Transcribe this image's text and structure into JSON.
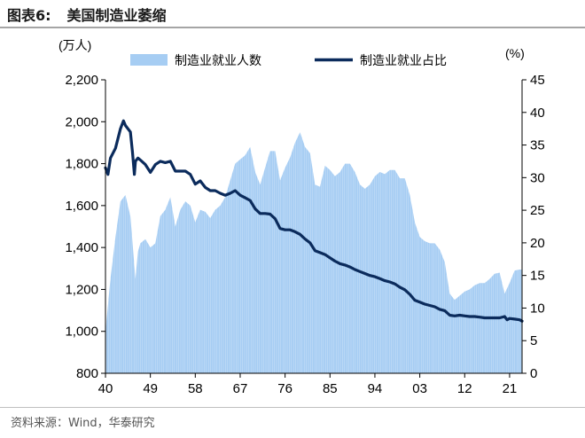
{
  "header": {
    "figure_no": "图表6:",
    "title": "美国制造业萎缩"
  },
  "source": "资料来源：Wind，华泰研究",
  "colors": {
    "bar": "#a6cdf3",
    "line": "#0b2b5c",
    "axis": "#000000"
  },
  "chart_data": {
    "type": "bar+line",
    "left_unit": "(万人)",
    "right_unit": "(%)",
    "x_ticks": [
      "40",
      "49",
      "58",
      "67",
      "76",
      "85",
      "94",
      "03",
      "12",
      "21"
    ],
    "x_range": [
      1940,
      2023.5
    ],
    "left_ylim": [
      800,
      2200
    ],
    "left_ticks": [
      "800",
      "1,000",
      "1,200",
      "1,400",
      "1,600",
      "1,800",
      "2,000",
      "2,200"
    ],
    "right_ylim": [
      0,
      45
    ],
    "right_ticks": [
      "0",
      "5",
      "10",
      "15",
      "20",
      "25",
      "30",
      "35",
      "40",
      "45"
    ],
    "series": [
      {
        "name": "制造业就业人数",
        "type": "area",
        "axis": "left",
        "points": [
          [
            1940,
            1000
          ],
          [
            1941,
            1250
          ],
          [
            1942,
            1450
          ],
          [
            1943,
            1620
          ],
          [
            1944,
            1650
          ],
          [
            1945,
            1550
          ],
          [
            1946,
            1250
          ],
          [
            1946.5,
            1380
          ],
          [
            1947,
            1420
          ],
          [
            1948,
            1440
          ],
          [
            1949,
            1400
          ],
          [
            1950,
            1420
          ],
          [
            1951,
            1550
          ],
          [
            1952,
            1580
          ],
          [
            1953,
            1640
          ],
          [
            1954,
            1500
          ],
          [
            1955,
            1580
          ],
          [
            1956,
            1620
          ],
          [
            1957,
            1600
          ],
          [
            1958,
            1520
          ],
          [
            1959,
            1580
          ],
          [
            1960,
            1570
          ],
          [
            1961,
            1540
          ],
          [
            1962,
            1580
          ],
          [
            1963,
            1600
          ],
          [
            1964,
            1640
          ],
          [
            1965,
            1720
          ],
          [
            1966,
            1800
          ],
          [
            1967,
            1820
          ],
          [
            1968,
            1840
          ],
          [
            1969,
            1880
          ],
          [
            1970,
            1760
          ],
          [
            1971,
            1700
          ],
          [
            1972,
            1780
          ],
          [
            1973,
            1860
          ],
          [
            1974,
            1860
          ],
          [
            1975,
            1720
          ],
          [
            1976,
            1780
          ],
          [
            1977,
            1830
          ],
          [
            1978,
            1900
          ],
          [
            1979,
            1950
          ],
          [
            1980,
            1880
          ],
          [
            1981,
            1850
          ],
          [
            1982,
            1700
          ],
          [
            1983,
            1690
          ],
          [
            1984,
            1790
          ],
          [
            1985,
            1770
          ],
          [
            1986,
            1740
          ],
          [
            1987,
            1760
          ],
          [
            1988,
            1800
          ],
          [
            1989,
            1800
          ],
          [
            1990,
            1760
          ],
          [
            1991,
            1700
          ],
          [
            1992,
            1680
          ],
          [
            1993,
            1700
          ],
          [
            1994,
            1740
          ],
          [
            1995,
            1760
          ],
          [
            1996,
            1750
          ],
          [
            1997,
            1770
          ],
          [
            1998,
            1770
          ],
          [
            1999,
            1730
          ],
          [
            2000,
            1730
          ],
          [
            2001,
            1650
          ],
          [
            2002,
            1520
          ],
          [
            2003,
            1450
          ],
          [
            2004,
            1430
          ],
          [
            2005,
            1420
          ],
          [
            2006,
            1420
          ],
          [
            2007,
            1390
          ],
          [
            2008,
            1330
          ],
          [
            2009,
            1180
          ],
          [
            2010,
            1150
          ],
          [
            2011,
            1170
          ],
          [
            2012,
            1190
          ],
          [
            2013,
            1200
          ],
          [
            2014,
            1220
          ],
          [
            2015,
            1230
          ],
          [
            2016,
            1230
          ],
          [
            2017,
            1250
          ],
          [
            2018,
            1275
          ],
          [
            2019,
            1280
          ],
          [
            2020,
            1180
          ],
          [
            2021,
            1230
          ],
          [
            2022,
            1290
          ],
          [
            2023,
            1295
          ],
          [
            2023.5,
            1295
          ]
        ]
      },
      {
        "name": "制造业就业占比",
        "type": "line",
        "axis": "right",
        "points": [
          [
            1940,
            31.5
          ],
          [
            1940.5,
            30.5
          ],
          [
            1941,
            33
          ],
          [
            1942,
            34.5
          ],
          [
            1943,
            37.5
          ],
          [
            1943.6,
            38.7
          ],
          [
            1944,
            38
          ],
          [
            1945,
            37
          ],
          [
            1945.4,
            34
          ],
          [
            1945.8,
            30.5
          ],
          [
            1946,
            32.5
          ],
          [
            1946.5,
            33
          ],
          [
            1947,
            32.7
          ],
          [
            1948,
            32
          ],
          [
            1949,
            30.8
          ],
          [
            1950,
            32
          ],
          [
            1951,
            32.5
          ],
          [
            1952,
            32.3
          ],
          [
            1953,
            32.5
          ],
          [
            1954,
            31
          ],
          [
            1955,
            31
          ],
          [
            1956,
            31
          ],
          [
            1957,
            30.5
          ],
          [
            1958,
            29
          ],
          [
            1959,
            29.5
          ],
          [
            1960,
            28.5
          ],
          [
            1961,
            28
          ],
          [
            1962,
            28
          ],
          [
            1963,
            27.6
          ],
          [
            1964,
            27.3
          ],
          [
            1965,
            27.6
          ],
          [
            1966,
            28
          ],
          [
            1967,
            27.3
          ],
          [
            1968,
            26.9
          ],
          [
            1969,
            26.5
          ],
          [
            1970,
            25.2
          ],
          [
            1971,
            24.5
          ],
          [
            1972,
            24.5
          ],
          [
            1973,
            24.4
          ],
          [
            1974,
            23.7
          ],
          [
            1975,
            22.2
          ],
          [
            1976,
            22
          ],
          [
            1977,
            22
          ],
          [
            1978,
            21.7
          ],
          [
            1979,
            21.3
          ],
          [
            1980,
            20.6
          ],
          [
            1981,
            20
          ],
          [
            1982,
            18.8
          ],
          [
            1983,
            18.5
          ],
          [
            1984,
            18.2
          ],
          [
            1985,
            17.7
          ],
          [
            1986,
            17.2
          ],
          [
            1987,
            16.8
          ],
          [
            1988,
            16.6
          ],
          [
            1989,
            16.3
          ],
          [
            1990,
            15.9
          ],
          [
            1991,
            15.6
          ],
          [
            1992,
            15.3
          ],
          [
            1993,
            15
          ],
          [
            1994,
            14.8
          ],
          [
            1995,
            14.5
          ],
          [
            1996,
            14.2
          ],
          [
            1997,
            14
          ],
          [
            1998,
            13.7
          ],
          [
            1999,
            13.2
          ],
          [
            2000,
            12.8
          ],
          [
            2001,
            12.1
          ],
          [
            2002,
            11.2
          ],
          [
            2003,
            10.9
          ],
          [
            2004,
            10.6
          ],
          [
            2005,
            10.4
          ],
          [
            2006,
            10.2
          ],
          [
            2007,
            9.8
          ],
          [
            2008,
            9.6
          ],
          [
            2009,
            8.9
          ],
          [
            2010,
            8.8
          ],
          [
            2011,
            8.9
          ],
          [
            2012,
            8.8
          ],
          [
            2013,
            8.7
          ],
          [
            2014,
            8.7
          ],
          [
            2015,
            8.6
          ],
          [
            2016,
            8.5
          ],
          [
            2017,
            8.5
          ],
          [
            2018,
            8.5
          ],
          [
            2019,
            8.5
          ],
          [
            2020,
            8.7
          ],
          [
            2020.5,
            8.2
          ],
          [
            2021,
            8.4
          ],
          [
            2022,
            8.3
          ],
          [
            2023,
            8.2
          ],
          [
            2023.5,
            8.0
          ]
        ]
      }
    ],
    "legend_placement": "top",
    "grid": false
  }
}
